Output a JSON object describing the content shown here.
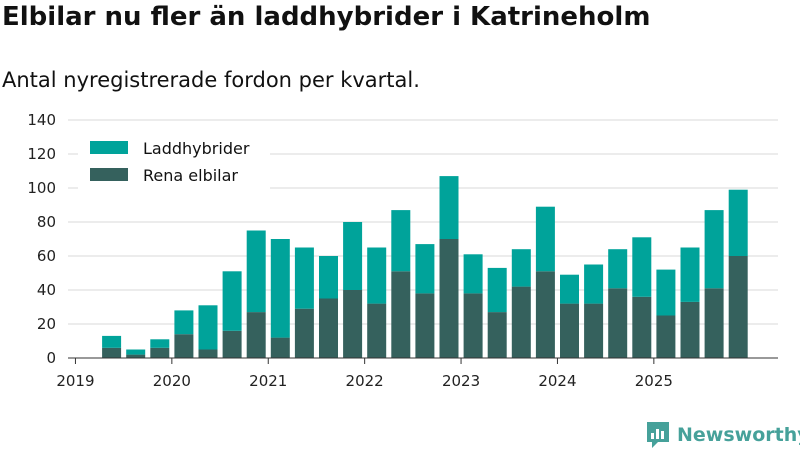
{
  "title": "Elbilar nu fler än laddhybrider i Katrineholm",
  "subtitle": "Antal nyregistrerade fordon per kvartal.",
  "brand": {
    "name": "Newsworthy"
  },
  "colors": {
    "hybrid": "#00a39a",
    "electric": "#35615d",
    "grid": "#d9d9d9",
    "axis": "#333333"
  },
  "chart_data": {
    "type": "bar",
    "stacked": true,
    "title": "",
    "xlabel": "",
    "ylabel": "",
    "ylim": [
      0,
      140
    ],
    "yticks": [
      0,
      20,
      40,
      60,
      80,
      100,
      120,
      140
    ],
    "grid": true,
    "legend": "top-left",
    "categories": [
      "2019 Q1",
      "2019 Q2",
      "2019 Q3",
      "2019 Q4",
      "2020 Q1",
      "2020 Q2",
      "2020 Q3",
      "2020 Q4",
      "2021 Q1",
      "2021 Q2",
      "2021 Q3",
      "2021 Q4",
      "2022 Q1",
      "2022 Q2",
      "2022 Q3",
      "2022 Q4",
      "2023 Q1",
      "2023 Q2",
      "2023 Q3",
      "2023 Q4",
      "2024 Q1",
      "2024 Q2",
      "2024 Q3",
      "2024 Q4",
      "2025 Q1",
      "2025 Q2",
      "2025 Q3",
      "2025 Q4"
    ],
    "year_labels": [
      "2019",
      "2020",
      "2021",
      "2022",
      "2023",
      "2024",
      "2025"
    ],
    "series": [
      {
        "name": "Rena elbilar",
        "values": [
          0,
          6,
          2,
          6,
          14,
          5,
          16,
          27,
          12,
          29,
          35,
          40,
          32,
          51,
          38,
          70,
          38,
          27,
          42,
          51,
          32,
          32,
          41,
          36,
          25,
          33,
          41,
          60
        ]
      },
      {
        "name": "Laddhybrider",
        "values": [
          0,
          7,
          3,
          5,
          14,
          26,
          35,
          48,
          58,
          36,
          25,
          40,
          33,
          36,
          29,
          37,
          23,
          26,
          22,
          38,
          17,
          23,
          23,
          35,
          27,
          32,
          46,
          39
        ]
      }
    ],
    "legend_order": [
      "Laddhybrider",
      "Rena elbilar"
    ]
  }
}
